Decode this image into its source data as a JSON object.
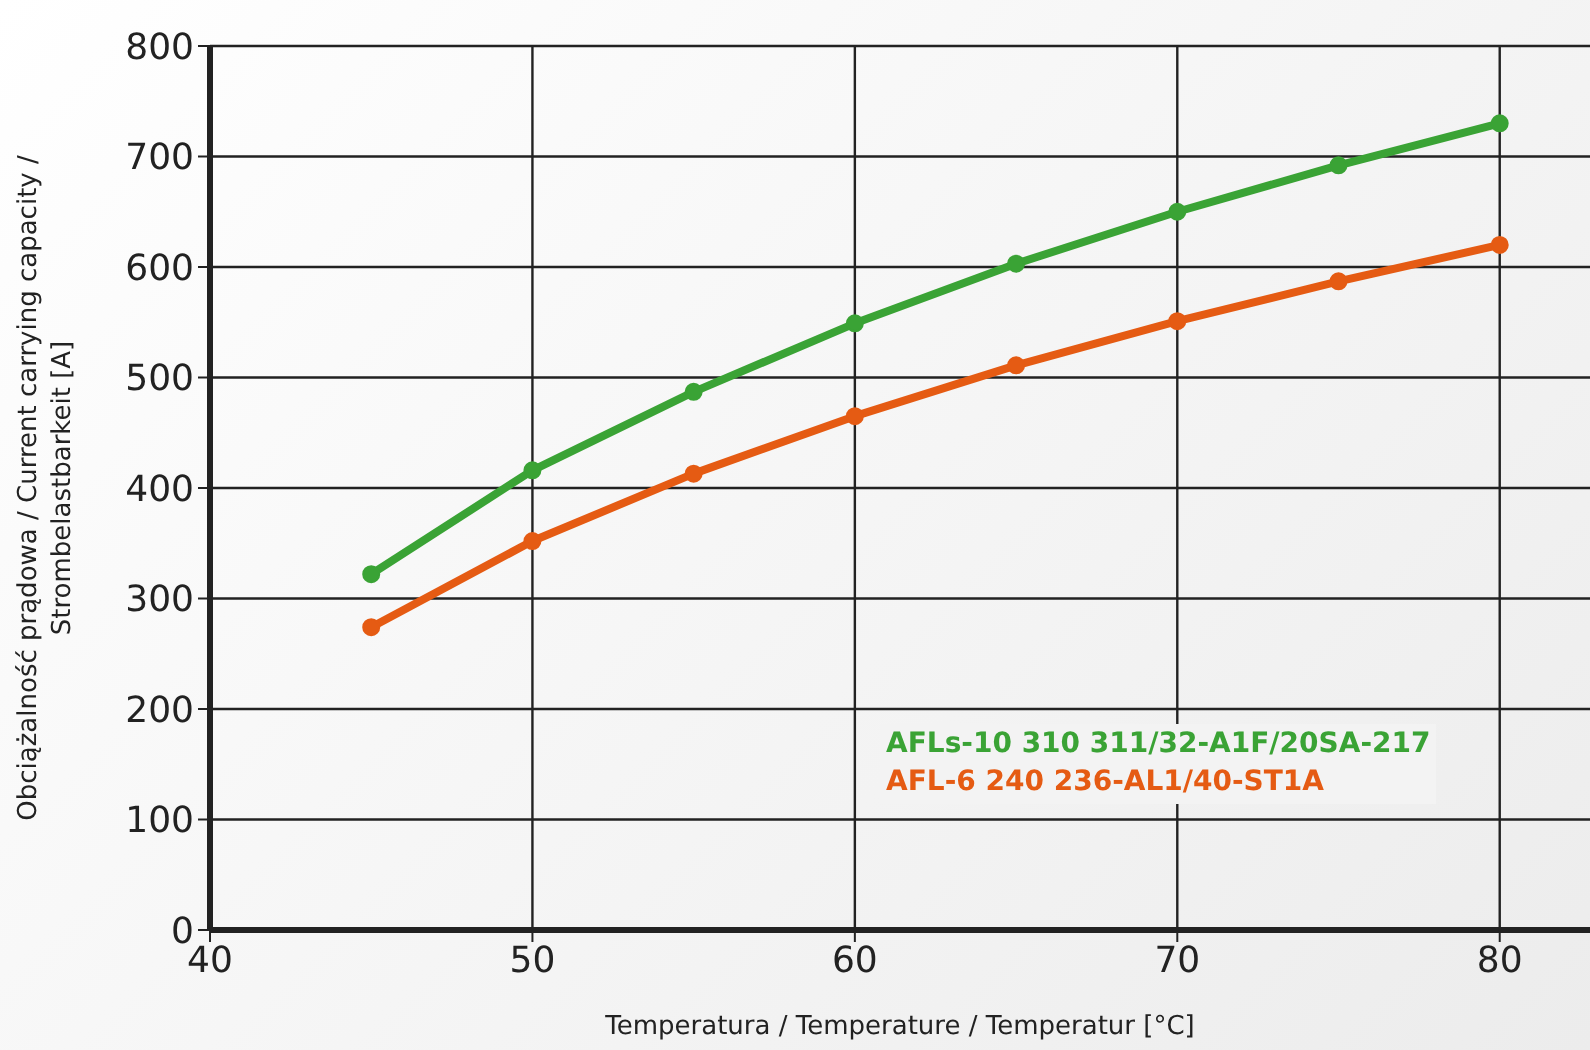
{
  "chart_data": {
    "type": "line",
    "xlabel": "Temperatura /  Temperature / Temperatur [°C]",
    "ylabel": "Obciążalność prądowa / Current carrying capacity /\nStrombelastbarkeit [A]",
    "x": [
      45,
      50,
      55,
      60,
      65,
      70,
      75,
      80
    ],
    "xlim": [
      40,
      82.8
    ],
    "xticks": [
      40,
      50,
      60,
      70,
      80
    ],
    "ylim": [
      0,
      800
    ],
    "yticks": [
      0,
      100,
      200,
      300,
      400,
      500,
      600,
      700,
      800
    ],
    "grid": true,
    "legend": "bottom right",
    "marker": "circle",
    "line_style": "solid",
    "series": [
      {
        "name": "AFLs-10 310 311/32-A1F/20SA-217",
        "color": "#3aa335",
        "values": [
          322,
          416,
          487,
          549,
          603,
          650,
          692,
          730
        ]
      },
      {
        "name": "AFL-6 240 236-AL1/40-ST1A",
        "color": "#e55b13",
        "values": [
          274,
          352,
          413,
          465,
          511,
          551,
          587,
          620
        ]
      }
    ]
  }
}
